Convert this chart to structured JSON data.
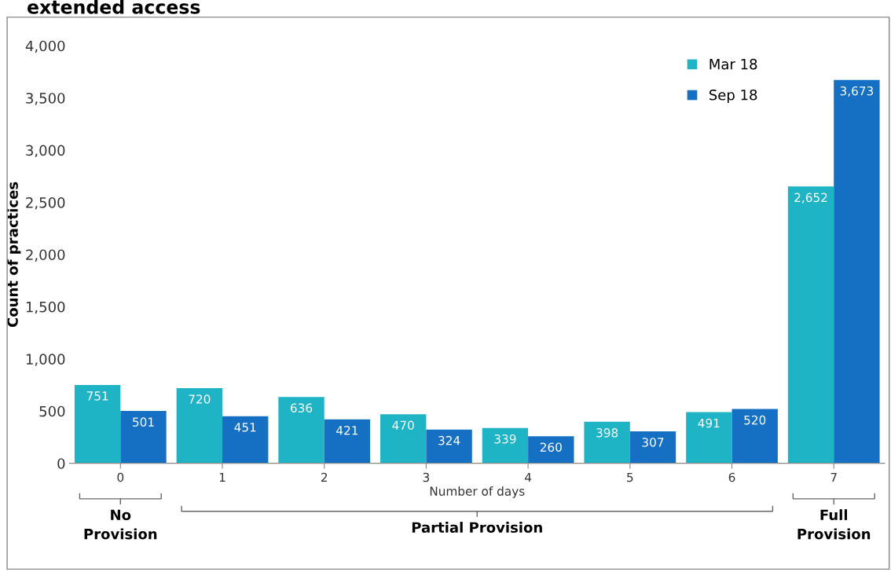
{
  "chart_data": {
    "type": "bar",
    "title": "extended access",
    "xlabel": "Number of days",
    "ylabel": "Count of practices",
    "categories": [
      "0",
      "1",
      "2",
      "3",
      "4",
      "5",
      "6",
      "7"
    ],
    "series": [
      {
        "name": "Mar 18",
        "color": "#1fb3c6",
        "values": [
          751,
          720,
          636,
          470,
          339,
          398,
          491,
          2652
        ],
        "value_labels": [
          "751",
          "720",
          "636",
          "470",
          "339",
          "398",
          "491",
          "2,652"
        ]
      },
      {
        "name": "Sep 18",
        "color": "#1570c4",
        "values": [
          501,
          451,
          421,
          324,
          260,
          307,
          520,
          3673
        ],
        "value_labels": [
          "501",
          "451",
          "421",
          "324",
          "260",
          "307",
          "520",
          "3,673"
        ]
      }
    ],
    "ylim": [
      0,
      4000
    ],
    "yticks": [
      {
        "value": 0,
        "label": "0"
      },
      {
        "value": 500,
        "label": "500"
      },
      {
        "value": 1000,
        "label": "1,000"
      },
      {
        "value": 1500,
        "label": "1,500"
      },
      {
        "value": 2000,
        "label": "2,000"
      },
      {
        "value": 2500,
        "label": "2,500"
      },
      {
        "value": 3000,
        "label": "3,000"
      },
      {
        "value": 3500,
        "label": "3,500"
      },
      {
        "value": 4000,
        "label": "4,000"
      }
    ],
    "grid": false,
    "legend": "top right",
    "annotations": [
      "No\nProvision",
      "Partial Provision",
      "Full\nProvision"
    ]
  }
}
